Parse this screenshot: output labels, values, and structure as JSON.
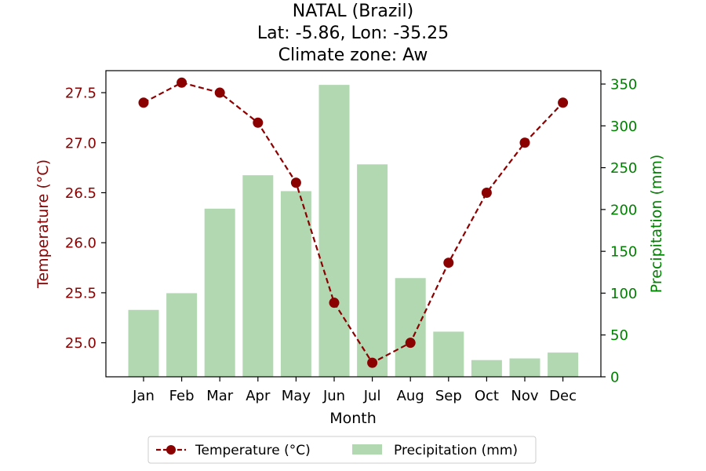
{
  "chart_data": {
    "type": "bar+line",
    "title_lines": [
      "NATAL (Brazil)",
      "Lat: -5.86, Lon: -35.25",
      "Climate zone: Aw"
    ],
    "xlabel": "Month",
    "ylabel_left": "Temperature (°C)",
    "ylabel_right": "Precipitation (mm)",
    "categories": [
      "Jan",
      "Feb",
      "Mar",
      "Apr",
      "May",
      "Jun",
      "Jul",
      "Aug",
      "Sep",
      "Oct",
      "Nov",
      "Dec"
    ],
    "temperature": {
      "name": "Temperature (°C)",
      "values": [
        27.4,
        27.6,
        27.5,
        27.2,
        26.6,
        25.4,
        24.8,
        25.0,
        25.8,
        26.5,
        27.0,
        27.4
      ],
      "ylim": [
        24.66,
        27.72
      ],
      "ticks": [
        "25.0",
        "25.5",
        "26.0",
        "26.5",
        "27.0",
        "27.5"
      ],
      "color": "#8b0000"
    },
    "precipitation": {
      "name": "Precipitation (mm)",
      "values": [
        80,
        100,
        201,
        241,
        222,
        349,
        254,
        118,
        54,
        20,
        22,
        29
      ],
      "ylim": [
        0,
        366
      ],
      "ticks": [
        "0",
        "50",
        "100",
        "150",
        "200",
        "250",
        "300",
        "350"
      ],
      "color": "#b2d8b2"
    },
    "legend": {
      "position": "bottom-center",
      "items": [
        "Temperature (°C)",
        "Precipitation (mm)"
      ]
    },
    "grid": false
  }
}
